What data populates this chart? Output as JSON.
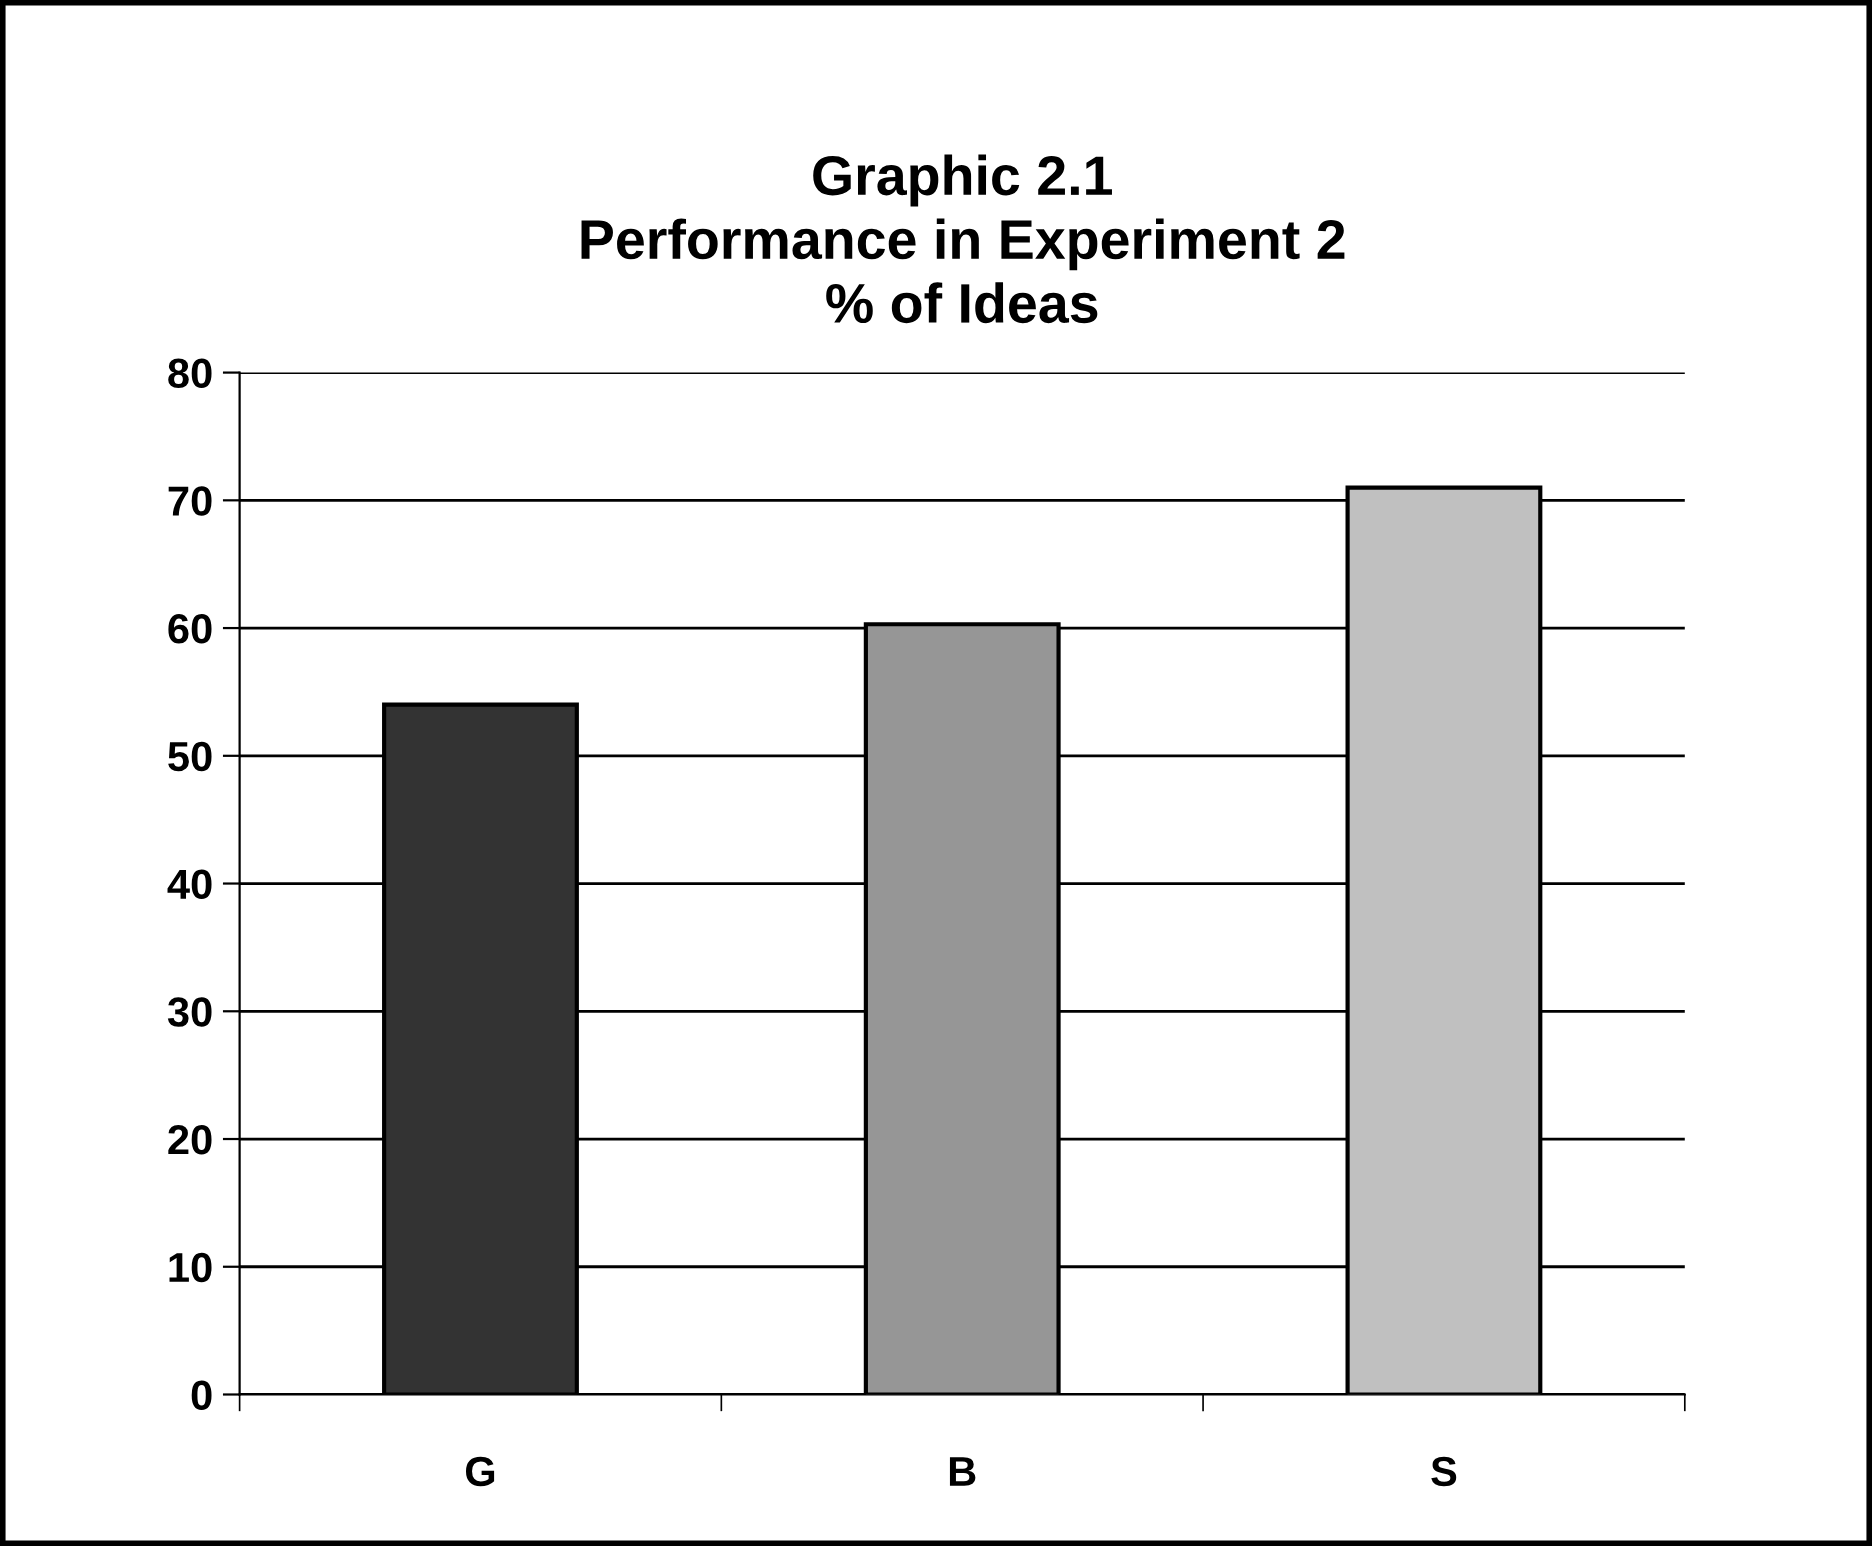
{
  "chart_data": {
    "type": "bar",
    "title": "Graphic 2.1\nPerformance in Experiment 2\n% of Ideas",
    "categories": [
      "G",
      "B",
      "S"
    ],
    "values": [
      54,
      60.3,
      71
    ],
    "colors": [
      "#333333",
      "#969696",
      "#c0c0c0"
    ],
    "ylim": [
      0,
      80
    ],
    "yticks": [
      0,
      10,
      20,
      30,
      40,
      50,
      60,
      70,
      80
    ],
    "grid": "y",
    "legend": false
  }
}
